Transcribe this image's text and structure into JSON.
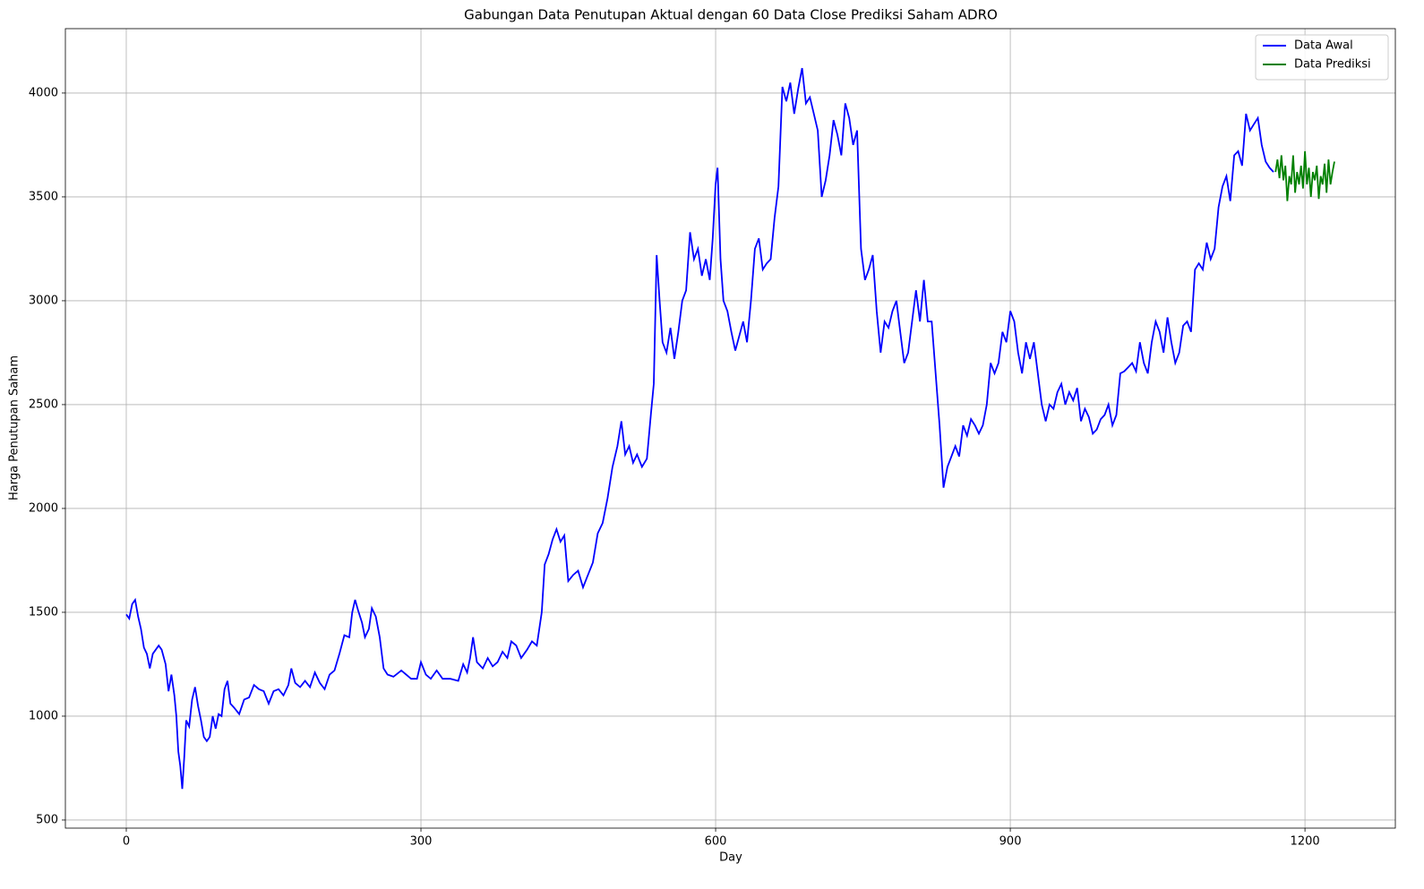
{
  "chart_data": {
    "type": "line",
    "title": "Gabungan Data Penutupan Aktual dengan 60 Data Close Prediksi Saham ADRO",
    "x_label": "Day",
    "y_label": "Harga Penutupan Saham",
    "xlim": [
      -62,
      1292
    ],
    "ylim": [
      461,
      4310
    ],
    "xticks": [
      0,
      300,
      600,
      900,
      1200
    ],
    "yticks": [
      500,
      1000,
      1500,
      2000,
      2500,
      3000,
      3500,
      4000
    ],
    "grid": true,
    "legend": "upper right",
    "series": [
      {
        "name": "Data Awal",
        "color": "#0000ff",
        "x": [
          0,
          3,
          6,
          9,
          12,
          15,
          18,
          21,
          24,
          27,
          30,
          33,
          36,
          40,
          43,
          46,
          49,
          51,
          53,
          55,
          57,
          59,
          61,
          64,
          67,
          70,
          73,
          76,
          79,
          82,
          85,
          88,
          91,
          94,
          97,
          100,
          103,
          106,
          110,
          115,
          120,
          125,
          130,
          135,
          140,
          145,
          150,
          155,
          160,
          165,
          168,
          172,
          177,
          182,
          187,
          192,
          197,
          202,
          207,
          212,
          217,
          222,
          227,
          230,
          233,
          236,
          240,
          243,
          247,
          250,
          254,
          258,
          262,
          266,
          272,
          280,
          290,
          296,
          300,
          305,
          310,
          316,
          322,
          330,
          338,
          343,
          347,
          350,
          353,
          357,
          363,
          368,
          373,
          378,
          383,
          388,
          392,
          397,
          402,
          408,
          413,
          418,
          423,
          426,
          430,
          434,
          438,
          442,
          446,
          450,
          455,
          460,
          465,
          470,
          475,
          480,
          485,
          490,
          495,
          500,
          504,
          508,
          512,
          516,
          520,
          525,
          530,
          534,
          537,
          540,
          543,
          546,
          550,
          554,
          558,
          562,
          566,
          570,
          574,
          578,
          582,
          586,
          590,
          594,
          597,
          600,
          602,
          605,
          608,
          612,
          616,
          620,
          624,
          628,
          632,
          636,
          640,
          644,
          648,
          652,
          656,
          660,
          664,
          668,
          672,
          676,
          680,
          684,
          688,
          692,
          696,
          700,
          704,
          708,
          712,
          716,
          720,
          724,
          728,
          732,
          736,
          740,
          744,
          748,
          752,
          756,
          760,
          764,
          768,
          772,
          776,
          780,
          784,
          788,
          792,
          796,
          800,
          804,
          808,
          812,
          816,
          820,
          824,
          828,
          832,
          836,
          840,
          844,
          848,
          852,
          856,
          860,
          864,
          868,
          872,
          876,
          880,
          884,
          888,
          892,
          896,
          900,
          904,
          908,
          912,
          916,
          920,
          924,
          928,
          932,
          936,
          940,
          944,
          948,
          952,
          956,
          960,
          964,
          968,
          972,
          976,
          980,
          984,
          988,
          992,
          996,
          1000,
          1004,
          1008,
          1012,
          1016,
          1020,
          1024,
          1028,
          1032,
          1036,
          1040,
          1044,
          1048,
          1052,
          1056,
          1060,
          1064,
          1068,
          1072,
          1076,
          1080,
          1084,
          1088,
          1092,
          1096,
          1100,
          1104,
          1108,
          1112,
          1116,
          1120,
          1124,
          1128,
          1132,
          1136,
          1140,
          1144,
          1148,
          1152,
          1156,
          1160,
          1164,
          1168
        ],
        "values": [
          1490,
          1470,
          1540,
          1560,
          1480,
          1420,
          1330,
          1300,
          1230,
          1300,
          1320,
          1340,
          1320,
          1250,
          1120,
          1200,
          1100,
          1000,
          830,
          760,
          650,
          800,
          980,
          950,
          1080,
          1140,
          1050,
          980,
          900,
          880,
          900,
          1000,
          940,
          1010,
          1000,
          1130,
          1170,
          1060,
          1040,
          1010,
          1080,
          1090,
          1150,
          1130,
          1120,
          1060,
          1120,
          1130,
          1100,
          1150,
          1230,
          1160,
          1140,
          1170,
          1140,
          1210,
          1160,
          1130,
          1200,
          1220,
          1300,
          1390,
          1380,
          1500,
          1560,
          1510,
          1450,
          1380,
          1420,
          1520,
          1480,
          1380,
          1230,
          1200,
          1190,
          1220,
          1180,
          1180,
          1260,
          1200,
          1180,
          1220,
          1180,
          1180,
          1170,
          1250,
          1210,
          1280,
          1380,
          1260,
          1230,
          1280,
          1240,
          1260,
          1310,
          1280,
          1360,
          1340,
          1280,
          1320,
          1360,
          1340,
          1500,
          1730,
          1780,
          1850,
          1900,
          1840,
          1870,
          1650,
          1680,
          1700,
          1620,
          1680,
          1740,
          1880,
          1930,
          2050,
          2200,
          2300,
          2420,
          2260,
          2300,
          2220,
          2260,
          2200,
          2240,
          2450,
          2600,
          3220,
          3000,
          2800,
          2750,
          2870,
          2720,
          2850,
          3000,
          3050,
          3330,
          3200,
          3250,
          3120,
          3200,
          3100,
          3300,
          3560,
          3640,
          3200,
          3000,
          2950,
          2850,
          2760,
          2830,
          2900,
          2800,
          3000,
          3250,
          3300,
          3150,
          3180,
          3200,
          3400,
          3550,
          4030,
          3960,
          4050,
          3900,
          4020,
          4120,
          3950,
          3980,
          3900,
          3820,
          3500,
          3580,
          3700,
          3870,
          3800,
          3700,
          3950,
          3880,
          3750,
          3820,
          3250,
          3100,
          3150,
          3220,
          2950,
          2750,
          2900,
          2870,
          2950,
          3000,
          2850,
          2700,
          2750,
          2900,
          3050,
          2900,
          3100,
          2900,
          2900,
          2650,
          2400,
          2100,
          2200,
          2250,
          2300,
          2250,
          2400,
          2350,
          2430,
          2400,
          2360,
          2400,
          2500,
          2700,
          2650,
          2700,
          2850,
          2800,
          2950,
          2900,
          2750,
          2650,
          2800,
          2720,
          2800,
          2650,
          2500,
          2420,
          2500,
          2480,
          2560,
          2600,
          2500,
          2560,
          2520,
          2580,
          2420,
          2480,
          2440,
          2360,
          2380,
          2430,
          2450,
          2500,
          2400,
          2450,
          2650,
          2660,
          2680,
          2700,
          2660,
          2800,
          2700,
          2650,
          2800,
          2900,
          2850,
          2750,
          2920,
          2800,
          2700,
          2750,
          2880,
          2900,
          2850,
          3150,
          3180,
          3150,
          3280,
          3200,
          3250,
          3450,
          3550,
          3600,
          3480,
          3700,
          3720,
          3650,
          3900,
          3820,
          3850,
          3880,
          3750,
          3670,
          3640,
          3620
        ]
      },
      {
        "name": "Data Prediksi",
        "color": "#008000",
        "x": [
          1170,
          1172,
          1174,
          1176,
          1178,
          1180,
          1182,
          1184,
          1186,
          1188,
          1190,
          1192,
          1194,
          1196,
          1198,
          1200,
          1202,
          1204,
          1206,
          1208,
          1210,
          1212,
          1214,
          1216,
          1218,
          1220,
          1222,
          1224,
          1226,
          1228,
          1230
        ],
        "values": [
          3620,
          3680,
          3590,
          3700,
          3580,
          3650,
          3480,
          3600,
          3560,
          3700,
          3520,
          3620,
          3560,
          3650,
          3540,
          3720,
          3560,
          3640,
          3500,
          3620,
          3580,
          3650,
          3490,
          3600,
          3560,
          3660,
          3520,
          3680,
          3560,
          3620,
          3670
        ]
      }
    ]
  }
}
